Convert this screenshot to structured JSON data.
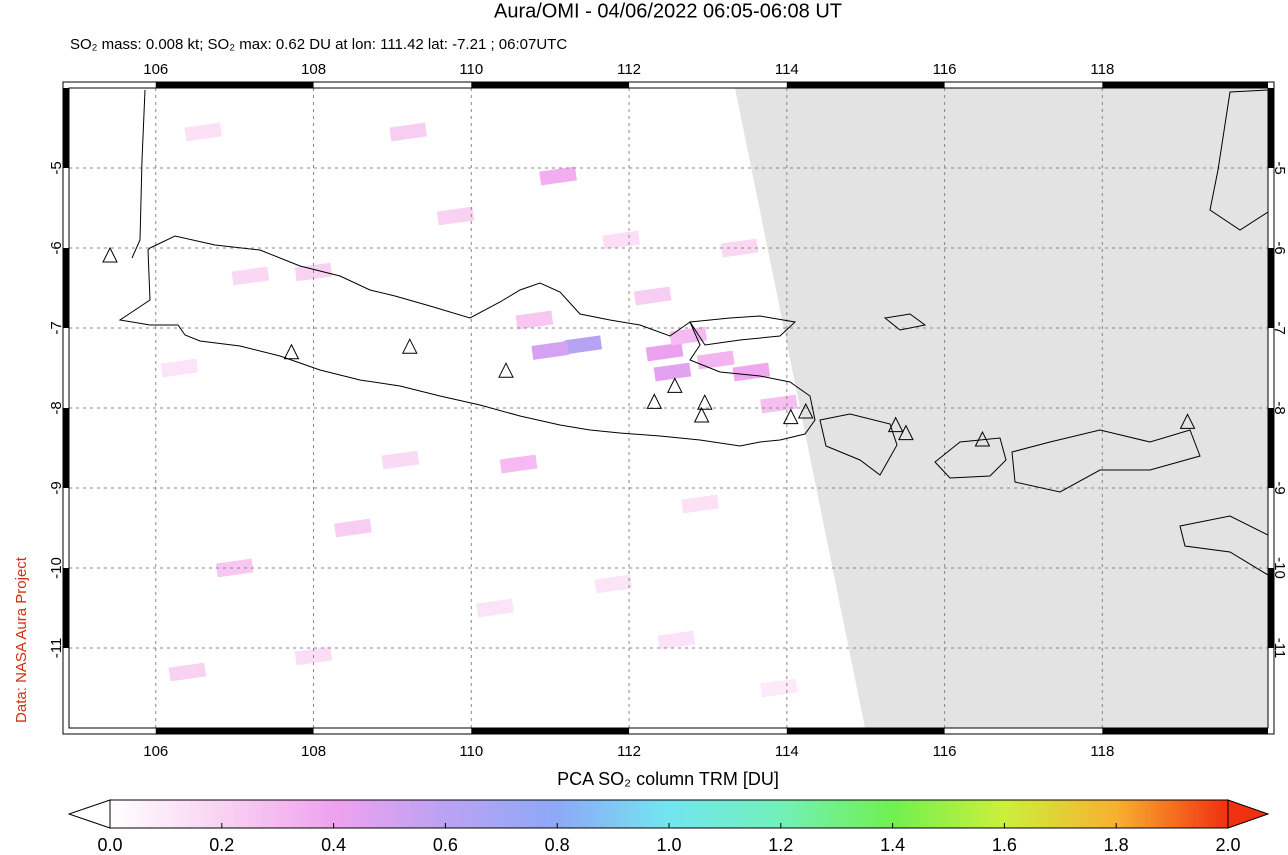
{
  "chart_data": {
    "type": "map",
    "title": "Aura/OMI - 04/06/2022 06:05-06:08 UT",
    "subtitle": "SO₂ mass: 0.008 kt; SO₂ max: 0.62 DU at lon: 111.42 lat: -7.21 ; 06:07UTC",
    "side_note": "Data: NASA Aura Project",
    "xlim": [
      104.9,
      120.1
    ],
    "ylim": [
      -12,
      -4
    ],
    "xticks": [
      106,
      108,
      110,
      112,
      114,
      116,
      118
    ],
    "yticks": [
      -5,
      -6,
      -7,
      -8,
      -9,
      -10,
      -11
    ],
    "grid": true,
    "volcanoes": {
      "lon": [
        105.42,
        107.72,
        109.22,
        110.44,
        112.32,
        112.58,
        112.96,
        112.92,
        114.05,
        114.24,
        115.38,
        115.51,
        116.48,
        119.08
      ],
      "lat": [
        -6.1,
        -7.31,
        -7.24,
        -7.54,
        -7.93,
        -7.73,
        -7.94,
        -8.1,
        -8.12,
        -8.05,
        -8.22,
        -8.32,
        -8.4,
        -8.18
      ]
    },
    "so2_cells": [
      [
        111.42,
        -7.21,
        0.62
      ],
      [
        111.0,
        -7.28,
        0.5
      ],
      [
        112.45,
        -7.3,
        0.42
      ],
      [
        112.55,
        -7.55,
        0.45
      ],
      [
        113.55,
        -7.55,
        0.38
      ],
      [
        112.75,
        -7.1,
        0.3
      ],
      [
        113.1,
        -7.4,
        0.32
      ],
      [
        113.9,
        -7.95,
        0.28
      ],
      [
        111.1,
        -5.1,
        0.35
      ],
      [
        112.3,
        -6.6,
        0.22
      ],
      [
        110.8,
        -6.9,
        0.25
      ],
      [
        108.0,
        -6.3,
        0.2
      ],
      [
        107.2,
        -6.35,
        0.18
      ],
      [
        109.8,
        -5.6,
        0.2
      ],
      [
        111.9,
        -5.9,
        0.15
      ],
      [
        106.6,
        -4.55,
        0.14
      ],
      [
        109.2,
        -4.55,
        0.22
      ],
      [
        110.6,
        -8.7,
        0.3
      ],
      [
        108.5,
        -9.5,
        0.22
      ],
      [
        107.0,
        -10.0,
        0.25
      ],
      [
        110.3,
        -10.5,
        0.12
      ],
      [
        106.4,
        -11.3,
        0.2
      ],
      [
        108.0,
        -11.1,
        0.15
      ],
      [
        111.8,
        -10.2,
        0.12
      ],
      [
        112.9,
        -9.2,
        0.14
      ],
      [
        113.4,
        -6.0,
        0.18
      ],
      [
        112.6,
        -10.9,
        0.13
      ],
      [
        106.3,
        -7.5,
        0.12
      ],
      [
        113.9,
        -11.5,
        0.1
      ],
      [
        109.1,
        -8.65,
        0.17
      ]
    ],
    "colorbar": {
      "label": "PCA SO₂ column TRM [DU]",
      "lim": [
        0,
        2
      ],
      "colors": [
        "#ffffff",
        "#f9d2f2",
        "#efa2ef",
        "#bba2f2",
        "#8ea8f8",
        "#72e6f0",
        "#72f0b8",
        "#70f050",
        "#cbf03c",
        "#f8b030",
        "#f03010"
      ],
      "ticks": [
        {
          "value": 0,
          "label": "0.0"
        },
        0.2,
        0.4,
        0.6,
        0.8,
        {
          "value": 1,
          "label": "1.0"
        },
        1.2,
        1.4,
        1.6,
        1.8,
        {
          "value": 2,
          "label": "2.0"
        }
      ]
    }
  }
}
